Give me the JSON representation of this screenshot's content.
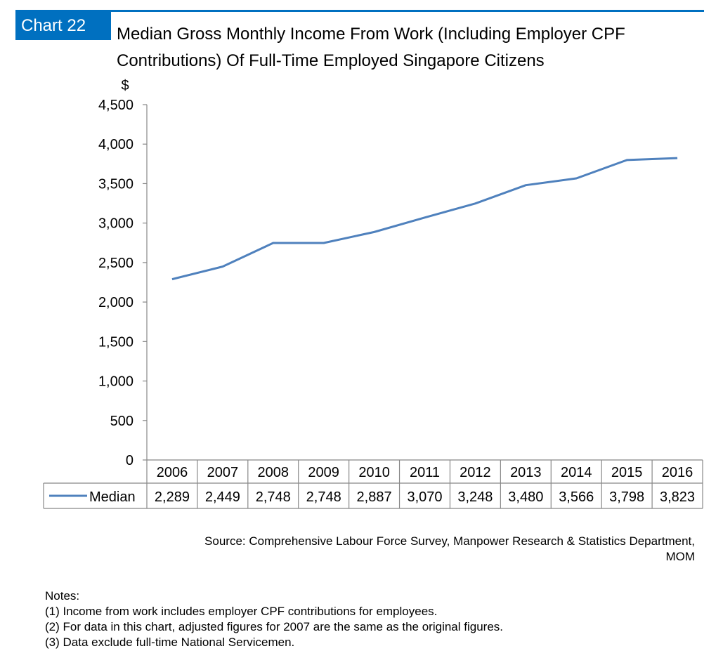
{
  "badge": "Chart 22",
  "title_line1": "Median Gross Monthly Income From Work (Including Employer CPF",
  "title_line2": "Contributions) Of Full-Time Employed Singapore Citizens",
  "chart_data": {
    "type": "line",
    "title": "Median Gross Monthly Income From Work (Including Employer CPF Contributions) Of Full-Time Employed Singapore Citizens",
    "ylabel": "$",
    "xlabel": "",
    "categories": [
      "2006",
      "2007",
      "2008",
      "2009",
      "2010",
      "2011",
      "2012",
      "2013",
      "2014",
      "2015",
      "2016"
    ],
    "series": [
      {
        "name": "Median",
        "values": [
          2289,
          2449,
          2748,
          2748,
          2887,
          3070,
          3248,
          3480,
          3566,
          3798,
          3823
        ]
      }
    ],
    "ylim": [
      0,
      4500
    ],
    "yticks": [
      0,
      500,
      1000,
      1500,
      2000,
      2500,
      3000,
      3500,
      4000,
      4500
    ],
    "ytick_labels": [
      "0",
      "500",
      "1,000",
      "1,500",
      "2,000",
      "2,500",
      "3,000",
      "3,500",
      "4,000",
      "4,500"
    ],
    "data_table": [
      "2,289",
      "2,449",
      "2,748",
      "2,748",
      "2,887",
      "3,070",
      "3,248",
      "3,480",
      "3,566",
      "3,798",
      "3,823"
    ],
    "grid": false,
    "legend": "data-table",
    "line_color": "#4F81BD"
  },
  "source_line1": "Source: Comprehensive Labour Force Survey, Manpower Research & Statistics Department,",
  "source_line2": "MOM",
  "notes": {
    "heading": "Notes:",
    "items": [
      "(1) Income from work includes employer CPF contributions for employees.",
      "(2) For data in this chart, adjusted figures for 2007 are the same as the original figures.",
      "(3) Data exclude full-time National Servicemen."
    ]
  }
}
